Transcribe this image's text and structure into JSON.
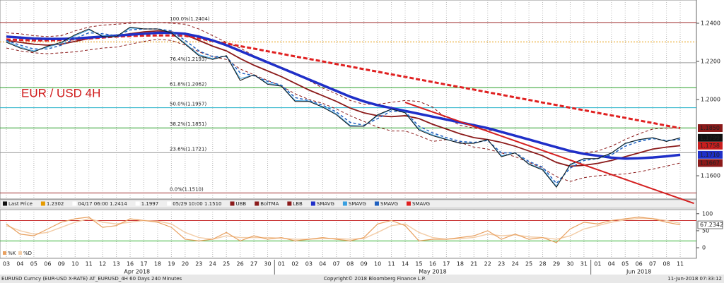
{
  "chart_data": {
    "type": "line",
    "title": "EUR / USD 4H",
    "categories": [
      "03",
      "04",
      "05",
      "06",
      "09",
      "10",
      "11",
      "12",
      "13",
      "16",
      "17",
      "18",
      "19",
      "20",
      "23",
      "24",
      "25",
      "26",
      "27",
      "30",
      "01",
      "02",
      "03",
      "04",
      "07",
      "08",
      "09",
      "10",
      "11",
      "14",
      "15",
      "16",
      "17",
      "18",
      "21",
      "22",
      "23",
      "24",
      "25",
      "28",
      "29",
      "30",
      "31",
      "01",
      "04",
      "05",
      "06",
      "07",
      "08",
      "11"
    ],
    "months": [
      "Apr 2018",
      "May 2018",
      "Jun 2018"
    ],
    "ylim": [
      1.1478,
      1.2522
    ],
    "yticks": [
      {
        "value": 1.24,
        "label": "1.2400"
      },
      {
        "value": 1.22,
        "label": "1.2200"
      },
      {
        "value": 1.2,
        "label": "1.2000"
      },
      {
        "value": 1.16,
        "label": "1.1600"
      }
    ],
    "grid": true,
    "series": [
      {
        "name": "Last Price",
        "color": "#111111",
        "width": 1,
        "style": "solid",
        "values": [
          1.23,
          1.227,
          1.225,
          1.228,
          1.23,
          1.234,
          1.237,
          1.233,
          1.233,
          1.238,
          1.237,
          1.237,
          1.235,
          1.229,
          1.223,
          1.221,
          1.223,
          1.21,
          1.213,
          1.208,
          1.207,
          1.199,
          1.199,
          1.196,
          1.192,
          1.186,
          1.186,
          1.192,
          1.195,
          1.193,
          1.184,
          1.181,
          1.179,
          1.177,
          1.177,
          1.179,
          1.17,
          1.172,
          1.166,
          1.163,
          1.154,
          1.166,
          1.169,
          1.169,
          1.172,
          1.177,
          1.179,
          1.18,
          1.178,
          1.1799
        ]
      },
      {
        "name": "UBB",
        "color": "#8b1a1a",
        "width": 1,
        "style": "dashed",
        "values": [
          1.235,
          1.2345,
          1.2335,
          1.233,
          1.2335,
          1.236,
          1.238,
          1.239,
          1.2395,
          1.24,
          1.2404,
          1.2404,
          1.24,
          1.2395,
          1.237,
          1.2335,
          1.23,
          1.227,
          1.223,
          1.22,
          1.217,
          1.214,
          1.21,
          1.206,
          1.203,
          1.1995,
          1.1975,
          1.1975,
          1.1985,
          1.1995,
          1.199,
          1.196,
          1.19,
          1.1865,
          1.185,
          1.184,
          1.183,
          1.181,
          1.179,
          1.177,
          1.1745,
          1.173,
          1.172,
          1.173,
          1.1755,
          1.179,
          1.182,
          1.1845,
          1.185,
          1.185
        ]
      },
      {
        "name": "BolTMA",
        "color": "#8b1a1a",
        "width": 1.8,
        "style": "solid",
        "values": [
          1.231,
          1.23,
          1.229,
          1.2285,
          1.229,
          1.2305,
          1.232,
          1.233,
          1.2335,
          1.2345,
          1.2355,
          1.236,
          1.2355,
          1.234,
          1.231,
          1.228,
          1.2255,
          1.2215,
          1.218,
          1.215,
          1.212,
          1.2085,
          1.205,
          1.202,
          1.199,
          1.1955,
          1.193,
          1.1915,
          1.191,
          1.1915,
          1.19,
          1.187,
          1.1845,
          1.182,
          1.18,
          1.179,
          1.1775,
          1.1755,
          1.173,
          1.1705,
          1.167,
          1.165,
          1.1655,
          1.1665,
          1.168,
          1.17,
          1.172,
          1.174,
          1.175,
          1.1758
        ]
      },
      {
        "name": "LBB",
        "color": "#8b1a1a",
        "width": 1,
        "style": "dashed",
        "values": [
          1.227,
          1.2255,
          1.2245,
          1.224,
          1.2245,
          1.225,
          1.226,
          1.227,
          1.2275,
          1.229,
          1.2305,
          1.2316,
          1.231,
          1.2285,
          1.225,
          1.2225,
          1.221,
          1.216,
          1.213,
          1.21,
          1.207,
          1.203,
          1.2,
          1.198,
          1.195,
          1.1915,
          1.1885,
          1.1855,
          1.1835,
          1.1835,
          1.181,
          1.178,
          1.179,
          1.1775,
          1.175,
          1.174,
          1.172,
          1.17,
          1.167,
          1.164,
          1.1595,
          1.157,
          1.159,
          1.16,
          1.1605,
          1.161,
          1.162,
          1.1635,
          1.165,
          1.1667
        ]
      },
      {
        "name": "SMAVG",
        "color": "#1f2fc8",
        "width": 3.5,
        "style": "solid",
        "values": [
          1.233,
          1.2325,
          1.232,
          1.2318,
          1.2318,
          1.232,
          1.2325,
          1.233,
          1.2335,
          1.234,
          1.2345,
          1.235,
          1.235,
          1.2345,
          1.233,
          1.231,
          1.2285,
          1.2255,
          1.2225,
          1.2195,
          1.2165,
          1.2135,
          1.2105,
          1.2075,
          1.2045,
          1.2015,
          1.199,
          1.197,
          1.1955,
          1.194,
          1.1925,
          1.191,
          1.1895,
          1.188,
          1.1865,
          1.185,
          1.183,
          1.181,
          1.179,
          1.177,
          1.175,
          1.173,
          1.1715,
          1.1705,
          1.1695,
          1.169,
          1.1692,
          1.1696,
          1.1702,
          1.171
        ]
      },
      {
        "name": "SMAVG",
        "color": "#3aa0e0",
        "width": 1,
        "style": "solid",
        "values": [
          1.2305,
          1.2275,
          1.2255,
          1.2275,
          1.2295,
          1.2335,
          1.2365,
          1.2335,
          1.233,
          1.2375,
          1.237,
          1.237,
          1.2352,
          1.2295,
          1.2235,
          1.2215,
          1.2228,
          1.211,
          1.2128,
          1.2085,
          1.2072,
          1.1995,
          1.1992,
          1.1962,
          1.1925,
          1.1865,
          1.186,
          1.1915,
          1.1948,
          1.1932,
          1.1845,
          1.1815,
          1.1792,
          1.1772,
          1.1771,
          1.1788,
          1.1705,
          1.172,
          1.1663,
          1.1635,
          1.1545,
          1.1655,
          1.1688,
          1.169,
          1.1718,
          1.1768,
          1.1788,
          1.1798,
          1.1782,
          1.1797
        ]
      },
      {
        "name": "SMAVG",
        "color": "#2060c0",
        "width": 1.5,
        "style": "dashed",
        "values": [
          1.231,
          1.2285,
          1.2265,
          1.2265,
          1.2285,
          1.232,
          1.235,
          1.2345,
          1.2335,
          1.2365,
          1.237,
          1.237,
          1.236,
          1.231,
          1.2255,
          1.2225,
          1.2225,
          1.214,
          1.2125,
          1.2095,
          1.2075,
          1.201,
          1.1995,
          1.197,
          1.1935,
          1.188,
          1.1865,
          1.19,
          1.194,
          1.1935,
          1.186,
          1.1825,
          1.18,
          1.178,
          1.1775,
          1.1785,
          1.172,
          1.172,
          1.1675,
          1.1645,
          1.156,
          1.164,
          1.168,
          1.169,
          1.171,
          1.1755,
          1.178,
          1.1795,
          1.1785,
          1.179
        ]
      },
      {
        "name": "SMAVG",
        "color": "#e02020",
        "width": 3,
        "style": "dashed",
        "values": [
          1.2315,
          1.2312,
          1.231,
          1.231,
          1.2312,
          1.2316,
          1.232,
          1.2325,
          1.233,
          1.2333,
          1.2335,
          1.2336,
          1.2336,
          1.2334,
          1.2321,
          1.2307,
          1.2294,
          1.228,
          1.2267,
          1.2253,
          1.224,
          1.2226,
          1.2213,
          1.22,
          1.2186,
          1.2173,
          1.2159,
          1.2146,
          1.2132,
          1.2119,
          1.2105,
          1.2092,
          1.2078,
          1.2065,
          1.2052,
          1.2038,
          1.2025,
          1.2011,
          1.1998,
          1.1984,
          1.1971,
          1.1957,
          1.1944,
          1.193,
          1.1917,
          1.1904,
          1.189,
          1.1877,
          1.1863,
          1.185
        ]
      }
    ],
    "level": {
      "value": 1.2302,
      "label": "1.2302",
      "color": "#e69b00"
    },
    "legend_texts": [
      "04/17 06:00 1.2414",
      "1.1997",
      "05/29 10:00 1.1510"
    ],
    "fib_levels": [
      {
        "value": 1.2404,
        "label": "100.0%(1.2404)",
        "color": "#a03030"
      },
      {
        "value": 1.2193,
        "label": "76.4%(1.2193)",
        "color": "#999999"
      },
      {
        "value": 1.2062,
        "label": "61.8%(1.2062)",
        "color": "#2aa02a"
      },
      {
        "value": 1.1957,
        "label": "50.0%(1.1957)",
        "color": "#20b0c8"
      },
      {
        "value": 1.1851,
        "label": "38.2%(1.1851)",
        "color": "#2aa02a"
      },
      {
        "value": 1.1721,
        "label": "23.6%(1.1721)",
        "color": "#999999"
      },
      {
        "value": 1.151,
        "label": "0.0%(1.1510)",
        "color": "#a03030"
      }
    ],
    "trendline": {
      "color": "#d42020",
      "x": [
        29,
        50
      ],
      "values": [
        1.1985,
        1.1455
      ]
    },
    "value_boxes": [
      {
        "value": 1.185,
        "label": "1.1850",
        "color": "#8b1a1a"
      },
      {
        "value": 1.1799,
        "label": "1.1799",
        "color": "#111111"
      },
      {
        "value": 1.1758,
        "label": "1.1758",
        "color": "#c81e1e"
      },
      {
        "value": 1.171,
        "label": "1.1710",
        "color": "#1f2fc8"
      },
      {
        "value": 1.1667,
        "label": "1.1667",
        "color": "#8b1a1a"
      }
    ],
    "stochastic": {
      "ylim": [
        -31,
        112
      ],
      "yticks": [
        100,
        50,
        0
      ],
      "bands": [
        {
          "value": 80,
          "color": "#c83030"
        },
        {
          "value": 20,
          "color": "#30b030"
        }
      ],
      "series": [
        {
          "name": "%K",
          "color": "#e8a060",
          "values": [
            70,
            40,
            35,
            55,
            75,
            85,
            90,
            60,
            65,
            85,
            80,
            75,
            60,
            25,
            20,
            25,
            45,
            20,
            35,
            25,
            30,
            20,
            25,
            30,
            25,
            20,
            30,
            70,
            80,
            65,
            20,
            25,
            25,
            30,
            35,
            50,
            25,
            40,
            25,
            30,
            15,
            55,
            75,
            70,
            80,
            85,
            90,
            85,
            75,
            67.2342
          ]
        },
        {
          "name": "%D",
          "color": "#f3cda8",
          "values": [
            65,
            50,
            40,
            45,
            60,
            75,
            85,
            75,
            70,
            75,
            80,
            78,
            70,
            45,
            30,
            25,
            35,
            30,
            30,
            30,
            28,
            25,
            25,
            27,
            27,
            25,
            27,
            45,
            65,
            70,
            45,
            30,
            25,
            27,
            30,
            40,
            35,
            38,
            32,
            30,
            25,
            35,
            55,
            65,
            75,
            82,
            86,
            86,
            80,
            72
          ]
        }
      ]
    },
    "footer": {
      "left": "EURUSD Curncy (EUR-USD X-RATE) AT_EURUSD_4H 60 Days 240 Minutes",
      "center": "Copyright© 2018 Bloomberg Finance L.P.",
      "right": "11-Jun-2018 07:33:12"
    }
  }
}
